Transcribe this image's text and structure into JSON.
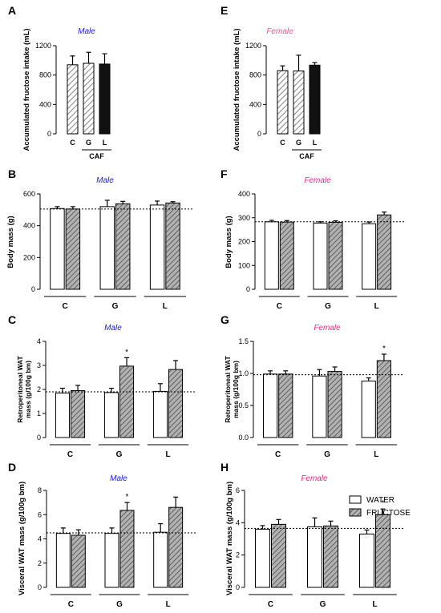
{
  "colors": {
    "male_title": "#1a1adf",
    "female_title": "#e0568f",
    "female_title_alt": "#ea2a86",
    "bar_stroke": "#000000",
    "hatch_light": "#8c8c8c",
    "hatch_dark": "#6a6a6a",
    "fructose_fill": "#9a9a9a",
    "laurel_fill": "#111111",
    "reference_line": "#000000"
  },
  "legend": {
    "water": "WATER",
    "fructose": "FRUCTOSE"
  },
  "chart_data": [
    {
      "panel": "A",
      "type": "bar",
      "title": "Male",
      "ylabel": "Accumulated fructose intake (mL)",
      "ylim": [
        0,
        1200
      ],
      "yticks": [
        "0",
        "400",
        "800",
        "1200"
      ],
      "categories": [
        "C",
        "G",
        "L"
      ],
      "group_label": "CAF",
      "series": [
        {
          "values": [
            940,
            960,
            950
          ],
          "errors": [
            120,
            150,
            140
          ]
        }
      ],
      "bar_styles": [
        "hatch-light",
        "hatch-light",
        "solid-dark"
      ]
    },
    {
      "panel": "E",
      "type": "bar",
      "title": "Female",
      "ylabel": "Accumulated fructose intake (mL)",
      "ylim": [
        0,
        1200
      ],
      "yticks": [
        "0",
        "400",
        "800",
        "1200"
      ],
      "categories": [
        "C",
        "G",
        "L"
      ],
      "group_label": "CAF",
      "series": [
        {
          "values": [
            860,
            855,
            935
          ],
          "errors": [
            65,
            215,
            35
          ]
        }
      ],
      "bar_styles": [
        "hatch-light",
        "hatch-light",
        "solid-dark"
      ]
    },
    {
      "panel": "B",
      "type": "bar",
      "title": "Male",
      "ylabel": "Body mass (g)",
      "ylim": [
        0,
        600
      ],
      "yticks": [
        "0",
        "200",
        "400",
        "600"
      ],
      "categories": [
        "C",
        "G",
        "L"
      ],
      "reference_line": 505,
      "series": [
        {
          "name": "WATER",
          "values": [
            508,
            520,
            530
          ],
          "errors": [
            12,
            40,
            25
          ]
        },
        {
          "name": "FRUCTOSE",
          "values": [
            505,
            538,
            543
          ],
          "errors": [
            15,
            15,
            8
          ]
        }
      ]
    },
    {
      "panel": "F",
      "type": "bar",
      "title": "Female",
      "ylabel": "Body mass (g)",
      "ylim": [
        0,
        400
      ],
      "yticks": [
        "0",
        "100",
        "200",
        "300",
        "400"
      ],
      "categories": [
        "C",
        "G",
        "L"
      ],
      "reference_line": 283,
      "series": [
        {
          "name": "WATER",
          "values": [
            283,
            278,
            275
          ],
          "errors": [
            6,
            5,
            7
          ]
        },
        {
          "name": "FRUCTOSE",
          "values": [
            282,
            281,
            312
          ],
          "errors": [
            6,
            6,
            12
          ]
        }
      ]
    },
    {
      "panel": "C",
      "type": "bar",
      "title": "Male",
      "ylabel": "Retroperitoneal WAT mass (g/100g bm)",
      "ylim": [
        0,
        4
      ],
      "yticks": [
        "0",
        "1",
        "2",
        "3",
        "4"
      ],
      "categories": [
        "C",
        "G",
        "L"
      ],
      "reference_line": 1.9,
      "series": [
        {
          "name": "WATER",
          "values": [
            1.85,
            1.87,
            1.92
          ],
          "errors": [
            0.2,
            0.18,
            0.32
          ]
        },
        {
          "name": "FRUCTOSE",
          "values": [
            1.95,
            2.97,
            2.83
          ],
          "errors": [
            0.22,
            0.35,
            0.37
          ]
        }
      ],
      "significance": [
        {
          "category": "G",
          "series": "FRUCTOSE",
          "label": "*"
        }
      ]
    },
    {
      "panel": "G",
      "type": "bar",
      "title": "Female",
      "ylabel": "Retroperitoneal WAT mass (g/100g bm)",
      "ylim": [
        0,
        1.5
      ],
      "yticks": [
        "0.0",
        "0.5",
        "1.0",
        "1.5"
      ],
      "categories": [
        "C",
        "G",
        "L"
      ],
      "reference_line": 0.98,
      "series": [
        {
          "name": "WATER",
          "values": [
            0.99,
            0.96,
            0.88
          ],
          "errors": [
            0.05,
            0.1,
            0.05
          ]
        },
        {
          "name": "FRUCTOSE",
          "values": [
            0.99,
            1.03,
            1.2
          ],
          "errors": [
            0.05,
            0.07,
            0.1
          ]
        }
      ],
      "significance": [
        {
          "category": "L",
          "series": "FRUCTOSE",
          "label": "*"
        }
      ]
    },
    {
      "panel": "D",
      "type": "bar",
      "title": "Male",
      "ylabel": "Visceral WAT mass (g/100g bm)",
      "ylim": [
        0,
        8
      ],
      "yticks": [
        "0",
        "2",
        "4",
        "6",
        "8"
      ],
      "categories": [
        "C",
        "G",
        "L"
      ],
      "reference_line": 4.5,
      "series": [
        {
          "name": "WATER",
          "values": [
            4.45,
            4.45,
            4.55
          ],
          "errors": [
            0.45,
            0.45,
            0.7
          ]
        },
        {
          "name": "FRUCTOSE",
          "values": [
            4.3,
            6.35,
            6.6
          ],
          "errors": [
            0.45,
            0.65,
            0.85
          ]
        }
      ],
      "significance": [
        {
          "category": "G",
          "series": "FRUCTOSE",
          "label": "*"
        }
      ]
    },
    {
      "panel": "H",
      "type": "bar",
      "title": "Female",
      "ylabel": "Visceral WAT mass (g/100g bm)",
      "ylim": [
        0,
        6
      ],
      "yticks": [
        "0",
        "2",
        "4",
        "6"
      ],
      "categories": [
        "C",
        "G",
        "L"
      ],
      "reference_line": 3.65,
      "series": [
        {
          "name": "WATER",
          "values": [
            3.6,
            3.75,
            3.3
          ],
          "errors": [
            0.22,
            0.55,
            0.25
          ]
        },
        {
          "name": "FRUCTOSE",
          "values": [
            3.9,
            3.8,
            4.5
          ],
          "errors": [
            0.3,
            0.3,
            0.35
          ]
        }
      ],
      "significance": [
        {
          "category": "L",
          "series": "FRUCTOSE",
          "label": "*"
        }
      ]
    }
  ]
}
